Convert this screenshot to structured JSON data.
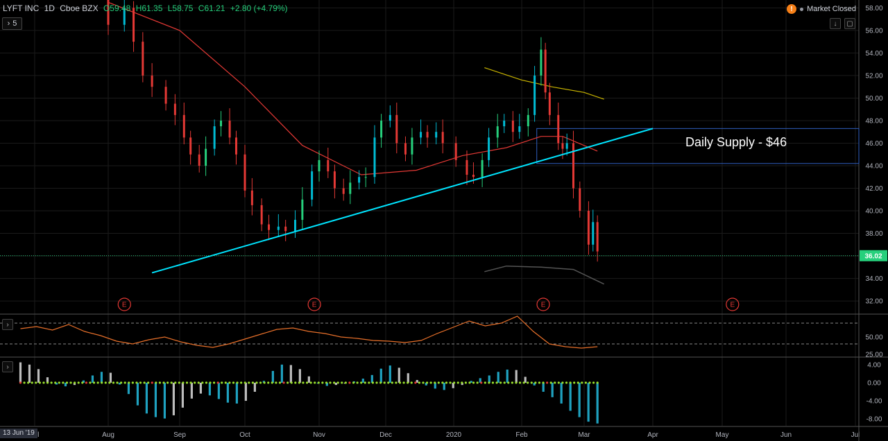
{
  "header": {
    "symbol": "LYFT INC",
    "interval": "1D",
    "exchange": "Cboe BZX",
    "open": "O59.48",
    "high": "H61.35",
    "low": "L58.75",
    "close": "C61.21",
    "change": "+2.80 (+4.79%)"
  },
  "market_status": "Market Closed",
  "collapse_count": "5",
  "annotation": "Daily Supply - $46",
  "last_price_label": "36.02",
  "cursor_date": "13 Jun '19",
  "colors": {
    "up": "#26d07c",
    "up_alt": "#00bcd4",
    "down": "#e53935",
    "trendline": "#00e5ff",
    "ma_fast": "#e53935",
    "ma_slow": "#c9b400",
    "ma_dark": "#555555",
    "supply_box": "#2f5fbf",
    "osc": "#e8702a",
    "histo_pos": "#1fa2c0",
    "histo_neg": "#bdbdbd",
    "earnings": "#e53935"
  },
  "chart_data": [
    {
      "type": "candlestick",
      "title": "",
      "x_tick_labels": [
        "Jul",
        "Aug",
        "Sep",
        "Oct",
        "Nov",
        "Dec",
        "2020",
        "Feb",
        "Mar",
        "Apr",
        "May",
        "Jun",
        "Jul"
      ],
      "y_tick_labels": [
        "32.00",
        "34.00",
        "36.00",
        "38.00",
        "40.00",
        "42.00",
        "44.00",
        "46.00",
        "48.00",
        "50.00",
        "52.00",
        "54.00",
        "56.00",
        "58.00"
      ],
      "ylim": [
        30.9,
        58.7
      ],
      "current_price": 36.02,
      "supply_zone": {
        "low": 44.2,
        "high": 47.3,
        "label": "Daily Supply - $46"
      },
      "trendline": {
        "from": {
          "date": "2019-08-20",
          "price": 34.5
        },
        "to": {
          "date": "2020-04-01",
          "price": 47.3
        }
      },
      "earnings_markers": [
        "E",
        "E",
        "E",
        "E"
      ],
      "earnings_dates": [
        "2019-08-08",
        "2019-10-30",
        "2020-02-11",
        "2020-05-06"
      ],
      "closes": [
        {
          "date": "2019-07-27",
          "price": 59.5
        },
        {
          "date": "2019-08-01",
          "price": 56.5
        },
        {
          "date": "2019-08-08",
          "price": 58.0
        },
        {
          "date": "2019-08-12",
          "price": 55.0
        },
        {
          "date": "2019-08-16",
          "price": 52.0
        },
        {
          "date": "2019-08-20",
          "price": 51.0
        },
        {
          "date": "2019-08-26",
          "price": 49.5
        },
        {
          "date": "2019-08-30",
          "price": 48.5
        },
        {
          "date": "2019-09-03",
          "price": 46.5
        },
        {
          "date": "2019-09-06",
          "price": 45.0
        },
        {
          "date": "2019-09-10",
          "price": 44.0
        },
        {
          "date": "2019-09-13",
          "price": 45.5
        },
        {
          "date": "2019-09-17",
          "price": 47.5
        },
        {
          "date": "2019-09-20",
          "price": 48.0
        },
        {
          "date": "2019-09-24",
          "price": 46.5
        },
        {
          "date": "2019-09-27",
          "price": 45.0
        },
        {
          "date": "2019-10-01",
          "price": 41.8
        },
        {
          "date": "2019-10-04",
          "price": 40.5
        },
        {
          "date": "2019-10-08",
          "price": 38.8
        },
        {
          "date": "2019-10-11",
          "price": 38.3
        },
        {
          "date": "2019-10-15",
          "price": 38.6
        },
        {
          "date": "2019-10-18",
          "price": 38.2
        },
        {
          "date": "2019-10-22",
          "price": 39.2
        },
        {
          "date": "2019-10-25",
          "price": 41.0
        },
        {
          "date": "2019-10-29",
          "price": 43.5
        },
        {
          "date": "2019-11-01",
          "price": 44.5
        },
        {
          "date": "2019-11-05",
          "price": 43.5
        },
        {
          "date": "2019-11-08",
          "price": 42.0
        },
        {
          "date": "2019-11-12",
          "price": 41.5
        },
        {
          "date": "2019-11-15",
          "price": 42.5
        },
        {
          "date": "2019-11-19",
          "price": 43.0
        },
        {
          "date": "2019-11-22",
          "price": 43.0
        },
        {
          "date": "2019-11-26",
          "price": 46.5
        },
        {
          "date": "2019-11-29",
          "price": 48.0
        },
        {
          "date": "2019-12-03",
          "price": 48.5
        },
        {
          "date": "2019-12-06",
          "price": 46.0
        },
        {
          "date": "2019-12-10",
          "price": 45.0
        },
        {
          "date": "2019-12-13",
          "price": 46.5
        },
        {
          "date": "2019-12-17",
          "price": 47.0
        },
        {
          "date": "2019-12-20",
          "price": 46.5
        },
        {
          "date": "2019-12-24",
          "price": 47.0
        },
        {
          "date": "2019-12-27",
          "price": 46.0
        },
        {
          "date": "2020-01-02",
          "price": 44.5
        },
        {
          "date": "2020-01-07",
          "price": 43.2
        },
        {
          "date": "2020-01-10",
          "price": 43.0
        },
        {
          "date": "2020-01-14",
          "price": 44.5
        },
        {
          "date": "2020-01-17",
          "price": 46.5
        },
        {
          "date": "2020-01-21",
          "price": 47.5
        },
        {
          "date": "2020-01-24",
          "price": 48.0
        },
        {
          "date": "2020-01-28",
          "price": 47.0
        },
        {
          "date": "2020-01-31",
          "price": 47.5
        },
        {
          "date": "2020-02-04",
          "price": 48.5
        },
        {
          "date": "2020-02-07",
          "price": 52.0
        },
        {
          "date": "2020-02-10",
          "price": 54.3
        },
        {
          "date": "2020-02-12",
          "price": 50.5
        },
        {
          "date": "2020-02-14",
          "price": 48.5
        },
        {
          "date": "2020-02-18",
          "price": 46.0
        },
        {
          "date": "2020-02-20",
          "price": 45.5
        },
        {
          "date": "2020-02-22",
          "price": 46.0
        },
        {
          "date": "2020-02-25",
          "price": 42.0
        },
        {
          "date": "2020-02-28",
          "price": 40.0
        },
        {
          "date": "2020-03-03",
          "price": 37.0
        },
        {
          "date": "2020-03-05",
          "price": 39.0
        },
        {
          "date": "2020-03-07",
          "price": 36.4
        }
      ],
      "ma_fast": [
        {
          "date": "2019-08-01",
          "price": 58.5
        },
        {
          "date": "2019-09-01",
          "price": 56.0
        },
        {
          "date": "2019-10-01",
          "price": 51.0
        },
        {
          "date": "2019-10-25",
          "price": 45.8
        },
        {
          "date": "2019-11-20",
          "price": 43.2
        },
        {
          "date": "2019-12-15",
          "price": 43.6
        },
        {
          "date": "2020-01-05",
          "price": 44.9
        },
        {
          "date": "2020-01-25",
          "price": 45.6
        },
        {
          "date": "2020-02-10",
          "price": 46.6
        },
        {
          "date": "2020-02-20",
          "price": 46.6
        },
        {
          "date": "2020-03-07",
          "price": 45.3
        }
      ],
      "ma_slow": [
        {
          "date": "2020-01-15",
          "price": 52.7
        },
        {
          "date": "2020-02-01",
          "price": 51.6
        },
        {
          "date": "2020-02-15",
          "price": 51.0
        },
        {
          "date": "2020-03-01",
          "price": 50.5
        },
        {
          "date": "2020-03-10",
          "price": 49.9
        }
      ],
      "ma_dark": [
        {
          "date": "2020-01-15",
          "price": 34.6
        },
        {
          "date": "2020-01-25",
          "price": 35.1
        },
        {
          "date": "2020-02-10",
          "price": 35.0
        },
        {
          "date": "2020-02-25",
          "price": 34.8
        },
        {
          "date": "2020-03-10",
          "price": 33.5
        }
      ]
    },
    {
      "type": "line",
      "title": "",
      "y_tick_labels": [
        "50.00",
        "25.00"
      ],
      "ylim": [
        22,
        82
      ],
      "levels": [
        70,
        40
      ],
      "series": [
        {
          "values": [
            62,
            65,
            60,
            68,
            58,
            52,
            44,
            40,
            46,
            50,
            43,
            38,
            35,
            40,
            47,
            54,
            61,
            63,
            58,
            55,
            50,
            48,
            45,
            44,
            42,
            45,
            55,
            64,
            73,
            66,
            70,
            80,
            58,
            40,
            36,
            34,
            36
          ]
        }
      ]
    },
    {
      "type": "bar",
      "title": "",
      "y_tick_labels": [
        "4.00",
        "0.00",
        "-4.00",
        "-8.00"
      ],
      "ylim": [
        -9.5,
        5.5
      ],
      "series": [
        {
          "values": [
            4.5,
            4.0,
            3.0,
            1.2,
            -0.4,
            -0.8,
            -0.5,
            0.5,
            1.6,
            2.4,
            2.2,
            -0.4,
            -2.5,
            -5.0,
            -6.8,
            -7.6,
            -7.9,
            -7.2,
            -5.5,
            -3.5,
            -2.4,
            -2.8,
            -3.6,
            -4.4,
            -4.6,
            -4.0,
            -2.0,
            0.4,
            2.6,
            4.0,
            3.9,
            3.0,
            1.4,
            -0.2,
            -0.7,
            -0.5,
            -0.2,
            0.3,
            0.9,
            1.7,
            3.1,
            3.8,
            3.3,
            2.1,
            0.6,
            -0.6,
            -1.3,
            -1.6,
            -1.2,
            -0.5,
            0.4,
            1.0,
            1.6,
            2.4,
            2.9,
            2.8,
            1.3,
            -0.6,
            -2.0,
            -3.2,
            -4.6,
            -6.2,
            -7.6,
            -8.6,
            -9.0
          ]
        }
      ]
    }
  ]
}
